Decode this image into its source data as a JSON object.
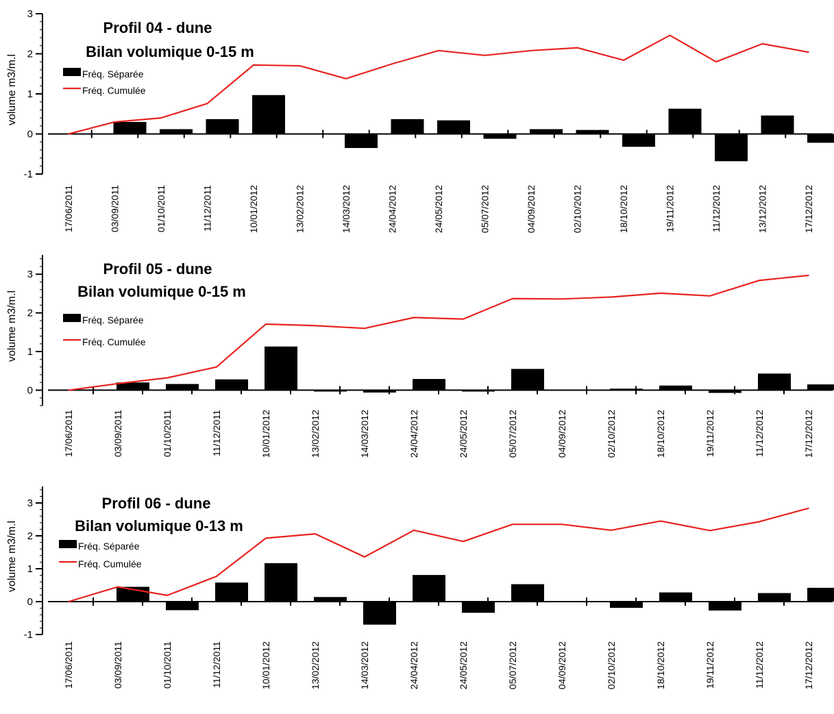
{
  "colors": {
    "bar": "#000000",
    "line": "#e8231f",
    "axis": "#000000"
  },
  "chart_data": [
    {
      "type": "bar",
      "title": "Profil 04 - dune",
      "subtitle": "Bilan volumique 0-15 m",
      "ylabel": "volume m3/m.l",
      "xlabel": "",
      "ylim": [
        -1,
        3
      ],
      "yticks": [
        -1,
        0,
        1,
        2,
        3
      ],
      "legend_position": "top-left",
      "categories": [
        "17/06/2011",
        "03/09/2011",
        "01/10/2011",
        "11/12/2011",
        "10/01/2012",
        "13/02/2012",
        "14/03/2012",
        "24/04/2012",
        "24/05/2012",
        "05/07/2012",
        "04/09/2012",
        "02/10/2012",
        "18/10/2012",
        "19/11/2012",
        "11/12/2012",
        "13/12/2012",
        "17/12/2012"
      ],
      "series": [
        {
          "name": "Fréq. Séparée",
          "kind": "bar",
          "values": [
            0,
            0.3,
            0.12,
            0.37,
            0.97,
            0,
            -0.35,
            0.37,
            0.34,
            -0.12,
            0.12,
            0.1,
            -0.32,
            0.63,
            -0.68,
            0.46,
            -0.22
          ]
        },
        {
          "name": "Fréq. Cumulée",
          "kind": "line",
          "values": [
            0,
            0.3,
            0.4,
            0.76,
            1.72,
            1.7,
            1.38,
            1.75,
            2.08,
            1.96,
            2.08,
            2.15,
            1.84,
            2.46,
            1.8,
            2.25,
            2.04
          ]
        }
      ]
    },
    {
      "type": "bar",
      "title": "Profil 05 - dune",
      "subtitle": "Bilan volumique 0-15 m",
      "ylabel": "volume m3/m.l",
      "xlabel": "",
      "ylim": [
        -0.4,
        3.5
      ],
      "yticks": [
        0,
        1,
        2,
        3
      ],
      "legend_position": "top-left",
      "categories": [
        "17/06/2011",
        "03/09/2011",
        "01/10/2011",
        "11/12/2011",
        "10/01/2012",
        "13/02/2012",
        "14/03/2012",
        "24/04/2012",
        "24/05/2012",
        "05/07/2012",
        "04/09/2012",
        "02/10/2012",
        "18/10/2012",
        "19/11/2012",
        "11/12/2012",
        "17/12/2012"
      ],
      "series": [
        {
          "name": "Fréq. Séparée",
          "kind": "bar",
          "values": [
            0,
            0.2,
            0.16,
            0.28,
            1.13,
            -0.03,
            -0.06,
            0.29,
            -0.03,
            0.55,
            0,
            0.04,
            0.12,
            -0.07,
            0.43,
            0.15
          ]
        },
        {
          "name": "Fréq. Cumulée",
          "kind": "line",
          "values": [
            0,
            0.17,
            0.32,
            0.6,
            1.71,
            1.67,
            1.6,
            1.88,
            1.84,
            2.37,
            2.36,
            2.41,
            2.51,
            2.44,
            2.84,
            2.97
          ]
        }
      ]
    },
    {
      "type": "bar",
      "title": "Profil 06 - dune",
      "subtitle": "Bilan volumique 0-13 m",
      "ylabel": "volume m3/m.l",
      "xlabel": "",
      "ylim": [
        -1,
        3.5
      ],
      "yticks": [
        -1,
        0,
        1,
        2,
        3
      ],
      "legend_position": "top-left",
      "categories": [
        "17/06/2011",
        "03/09/2011",
        "01/10/2011",
        "11/12/2011",
        "10/01/2012",
        "13/02/2012",
        "14/03/2012",
        "24/04/2012",
        "24/05/2012",
        "05/07/2012",
        "04/09/2012",
        "02/10/2012",
        "18/10/2012",
        "19/11/2012",
        "11/12/2012",
        "17/12/2012"
      ],
      "series": [
        {
          "name": "Fréq. Séparée",
          "kind": "bar",
          "values": [
            0,
            0.45,
            -0.26,
            0.58,
            1.17,
            0.14,
            -0.7,
            0.81,
            -0.34,
            0.53,
            0,
            -0.19,
            0.28,
            -0.27,
            0.26,
            0.42
          ]
        },
        {
          "name": "Fréq. Cumulée",
          "kind": "line",
          "values": [
            0,
            0.45,
            0.19,
            0.77,
            1.93,
            2.06,
            1.36,
            2.17,
            1.83,
            2.35,
            2.35,
            2.17,
            2.45,
            2.16,
            2.43,
            2.84
          ]
        }
      ]
    }
  ]
}
